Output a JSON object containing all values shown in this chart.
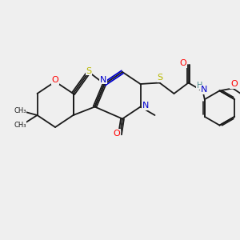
{
  "bg_color": "#efefef",
  "atom_colors": {
    "S": "#b8b800",
    "O": "#ff0000",
    "N": "#0000cc",
    "H": "#4a8a8a",
    "C": "#1a1a1a"
  },
  "lw": 1.3,
  "fs": 7.5
}
